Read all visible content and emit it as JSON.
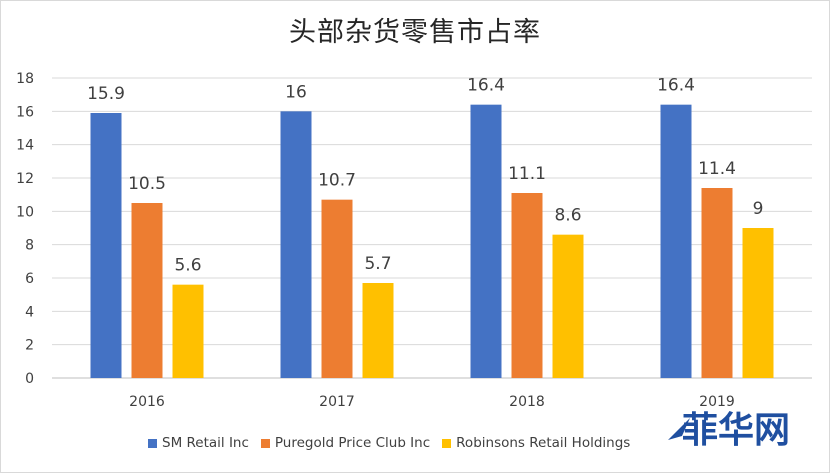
{
  "chart_data": {
    "type": "bar",
    "title": "头部杂货零售市占率",
    "categories": [
      "2016",
      "2017",
      "2018",
      "2019"
    ],
    "series": [
      {
        "name": "SM Retail Inc",
        "values": [
          15.9,
          16,
          16.4,
          16.4
        ],
        "color": "#4472c4"
      },
      {
        "name": "Puregold Price Club Inc",
        "values": [
          10.5,
          10.7,
          11.1,
          11.4
        ],
        "color": "#ed7d31"
      },
      {
        "name": "Robinsons Retail Holdings",
        "values": [
          5.6,
          5.7,
          8.6,
          9
        ],
        "color": "#ffc000"
      }
    ],
    "data_labels": [
      [
        "15.9",
        "16",
        "16.4",
        "16.4"
      ],
      [
        "10.5",
        "10.7",
        "11.1",
        "11.4"
      ],
      [
        "5.6",
        "5.7",
        "8.6",
        "9"
      ]
    ],
    "yticks": [
      "0",
      "2",
      "4",
      "6",
      "8",
      "10",
      "12",
      "14",
      "16",
      "18"
    ],
    "ylim": [
      0,
      18
    ],
    "grid": true,
    "legend": "bottom",
    "xlabel": "",
    "ylabel": ""
  },
  "watermark": {
    "text": "菲华网",
    "color": "#1f4fa0"
  }
}
